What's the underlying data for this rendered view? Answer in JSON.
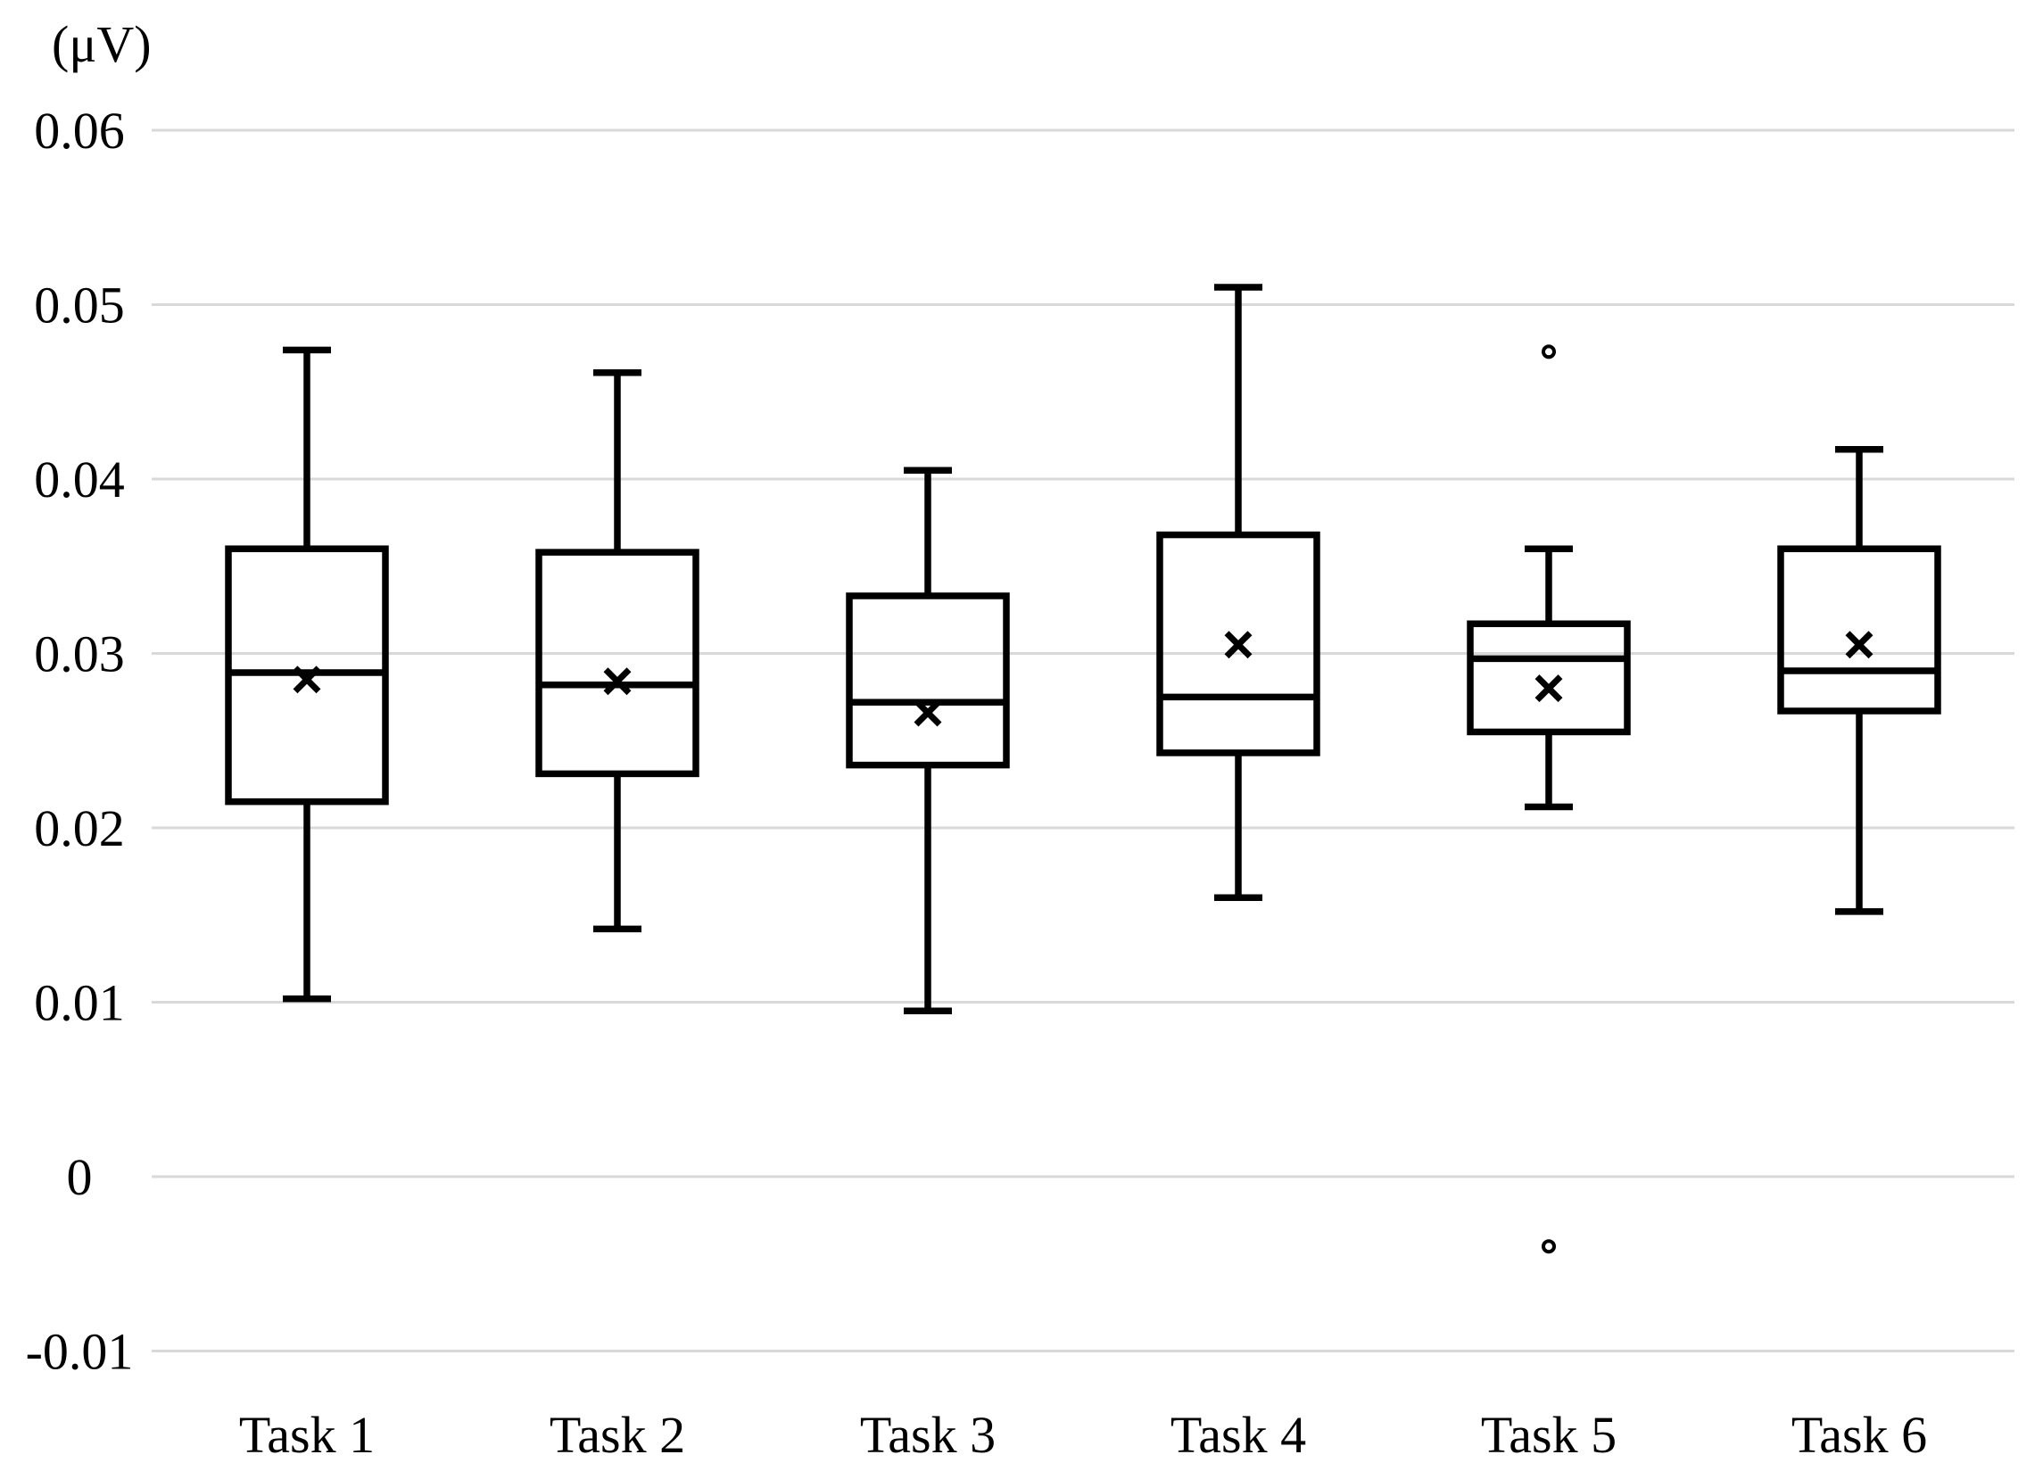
{
  "figure": {
    "background": "#ffffff"
  },
  "chart_data": {
    "type": "box",
    "title": "",
    "ylabel_unit": "(μV)",
    "xlabel": "",
    "categories": [
      "Task 1",
      "Task 2",
      "Task 3",
      "Task 4",
      "Task 5",
      "Task 6"
    ],
    "y_tick_labels": [
      "0.06",
      "0.05",
      "0.04",
      "0.03",
      "0.02",
      "0.01",
      "0",
      "-0.01"
    ],
    "y_tick_values": [
      0.06,
      0.05,
      0.04,
      0.03,
      0.02,
      0.01,
      0,
      -0.01
    ],
    "ylim": [
      -0.01,
      0.06
    ],
    "grid": "horizontal",
    "legend": "none",
    "series": [
      {
        "category": "Task 1",
        "whisker_low": 0.0102,
        "q1": 0.0215,
        "median": 0.0289,
        "mean": 0.0285,
        "q3": 0.036,
        "whisker_high": 0.0474,
        "outliers": []
      },
      {
        "category": "Task 2",
        "whisker_low": 0.0142,
        "q1": 0.0231,
        "median": 0.0282,
        "mean": 0.0284,
        "q3": 0.0358,
        "whisker_high": 0.0461,
        "outliers": []
      },
      {
        "category": "Task 3",
        "whisker_low": 0.0095,
        "q1": 0.0236,
        "median": 0.0272,
        "mean": 0.0266,
        "q3": 0.0333,
        "whisker_high": 0.0405,
        "outliers": []
      },
      {
        "category": "Task 4",
        "whisker_low": 0.016,
        "q1": 0.0243,
        "median": 0.0275,
        "mean": 0.0305,
        "q3": 0.0368,
        "whisker_high": 0.051,
        "outliers": []
      },
      {
        "category": "Task 5",
        "whisker_low": 0.0212,
        "q1": 0.0255,
        "median": 0.0297,
        "mean": 0.028,
        "q3": 0.0317,
        "whisker_high": 0.036,
        "outliers": [
          0.0473,
          -0.004
        ]
      },
      {
        "category": "Task 6",
        "whisker_low": 0.0152,
        "q1": 0.0267,
        "median": 0.029,
        "mean": 0.0305,
        "q3": 0.036,
        "whisker_high": 0.0417,
        "outliers": []
      }
    ],
    "colors": {
      "box_stroke": "#000000",
      "median_stroke": "#000000",
      "mean_marker_stroke": "#000000",
      "outlier_stroke": "#000000",
      "gridline": "#d9d9d9",
      "text": "#000000",
      "background": "#ffffff"
    }
  }
}
